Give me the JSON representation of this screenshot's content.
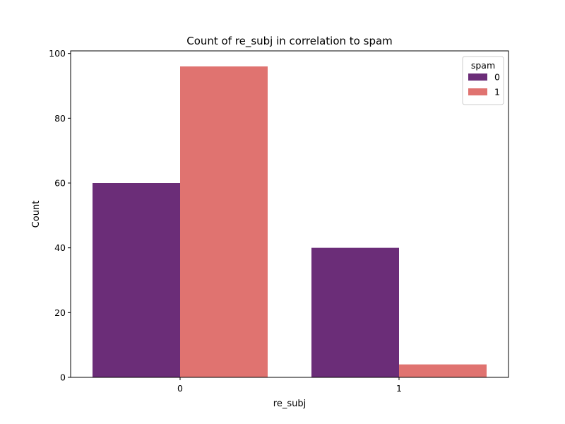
{
  "chart_data": {
    "type": "bar",
    "title": "Count of re_subj in correlation to spam",
    "xlabel": "re_subj",
    "ylabel": "Count",
    "categories": [
      "0",
      "1"
    ],
    "yticks": [
      0,
      20,
      40,
      60,
      80,
      100
    ],
    "ylim": [
      0,
      100.8
    ],
    "grid": false,
    "legend": {
      "title": "spam",
      "placement": "top-right"
    },
    "series": [
      {
        "name": "0",
        "values": [
          60,
          40
        ],
        "color": "#6b2d78"
      },
      {
        "name": "1",
        "values": [
          96,
          4
        ],
        "color": "#e07370"
      }
    ]
  }
}
